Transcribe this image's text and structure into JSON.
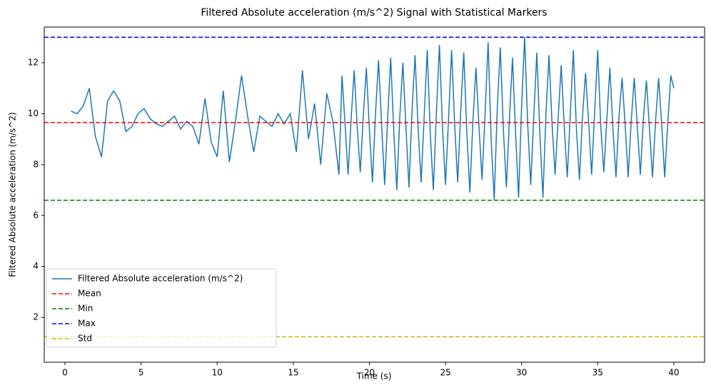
{
  "chart_data": {
    "type": "line",
    "title": "Filtered Absolute acceleration (m/s^2) Signal with Statistical Markers",
    "xlabel": "Time (s)",
    "ylabel": "Filtered Absolute acceleration (m/s^2)",
    "xlim": [
      -1.36,
      42.02
    ],
    "ylim": [
      0.24,
      13.4
    ],
    "xticks": [
      0,
      5,
      10,
      15,
      20,
      25,
      30,
      35,
      40
    ],
    "yticks": [
      2,
      4,
      6,
      8,
      10,
      12
    ],
    "legend": "lower left",
    "series": [
      {
        "name": "Filtered Absolute acceleration (m/s^2)",
        "color": "#1f77b4",
        "x": [
          0.4,
          0.8,
          1.2,
          1.6,
          2.0,
          2.4,
          2.8,
          3.2,
          3.6,
          4.0,
          4.4,
          4.8,
          5.2,
          5.6,
          6.0,
          6.4,
          6.8,
          7.2,
          7.6,
          8.0,
          8.4,
          8.8,
          9.2,
          9.6,
          10.0,
          10.4,
          10.8,
          11.2,
          11.6,
          12.0,
          12.4,
          12.8,
          13.2,
          13.6,
          14.0,
          14.4,
          14.8,
          15.2,
          15.6,
          16.0,
          16.4,
          16.8,
          17.2,
          17.6,
          18.0,
          18.2,
          18.4,
          18.6,
          18.8,
          19.0,
          19.2,
          19.4,
          19.6,
          19.8,
          20.0,
          20.2,
          20.4,
          20.6,
          20.8,
          21.0,
          21.2,
          21.4,
          21.6,
          21.8,
          22.0,
          22.2,
          22.4,
          22.6,
          22.8,
          23.0,
          23.2,
          23.4,
          23.6,
          23.8,
          24.0,
          24.2,
          24.4,
          24.6,
          24.8,
          25.0,
          25.2,
          25.4,
          25.6,
          25.8,
          26.0,
          26.2,
          26.4,
          26.6,
          26.8,
          27.0,
          27.2,
          27.4,
          27.6,
          27.8,
          28.0,
          28.2,
          28.4,
          28.6,
          28.8,
          29.0,
          29.2,
          29.4,
          29.6,
          29.8,
          30.0,
          30.2,
          30.4,
          30.6,
          30.8,
          31.0,
          31.2,
          31.4,
          31.6,
          31.8,
          32.0,
          32.2,
          32.4,
          32.6,
          32.8,
          33.0,
          33.2,
          33.4,
          33.6,
          33.8,
          34.0,
          34.2,
          34.4,
          34.6,
          34.8,
          35.0,
          35.2,
          35.4,
          35.6,
          35.8,
          36.0,
          36.2,
          36.4,
          36.6,
          36.8,
          37.0,
          37.2,
          37.4,
          37.6,
          37.8,
          38.0,
          38.2,
          38.4,
          38.6,
          38.8,
          39.0,
          39.2,
          39.4,
          39.6,
          39.8,
          40.0
        ],
        "values": [
          10.1,
          10.0,
          10.3,
          11.0,
          9.1,
          8.3,
          10.5,
          10.9,
          10.5,
          9.3,
          9.5,
          10.0,
          10.2,
          9.8,
          9.6,
          9.5,
          9.7,
          9.9,
          9.4,
          9.7,
          9.5,
          8.8,
          10.6,
          8.9,
          8.3,
          10.9,
          8.1,
          9.7,
          11.5,
          9.9,
          8.5,
          9.9,
          9.7,
          9.5,
          10.0,
          9.6,
          10.0,
          8.5,
          11.7,
          9.0,
          10.4,
          8.0,
          10.8,
          9.7,
          7.6,
          11.5,
          9.6,
          7.6,
          9.8,
          11.7,
          9.5,
          7.7,
          9.9,
          11.8,
          9.4,
          7.3,
          10.0,
          12.1,
          9.6,
          7.2,
          9.8,
          12.2,
          9.3,
          7.0,
          9.9,
          12.0,
          9.5,
          7.1,
          10.1,
          12.3,
          9.4,
          7.3,
          9.9,
          12.5,
          9.2,
          7.0,
          10.0,
          12.7,
          9.5,
          7.2,
          9.8,
          12.5,
          9.6,
          7.3,
          10.1,
          12.4,
          9.3,
          6.9,
          9.7,
          11.8,
          9.5,
          7.4,
          10.0,
          12.8,
          9.0,
          6.6,
          10.2,
          12.6,
          9.4,
          7.1,
          9.8,
          12.2,
          9.3,
          6.7,
          10.3,
          13.0,
          9.6,
          7.2,
          9.9,
          12.4,
          9.2,
          6.7,
          10.0,
          12.3,
          9.6,
          7.6,
          9.8,
          11.9,
          9.5,
          7.5,
          10.0,
          12.5,
          9.4,
          7.4,
          9.9,
          11.6,
          9.7,
          7.6,
          10.1,
          12.5,
          9.5,
          7.7,
          9.8,
          11.8,
          9.4,
          7.5,
          9.9,
          11.4,
          9.6,
          7.5,
          9.7,
          11.4,
          9.5,
          7.6,
          9.8,
          11.3,
          9.4,
          7.5,
          9.7,
          11.4,
          9.6,
          7.5,
          9.6,
          11.5,
          11.0
        ]
      }
    ],
    "hlines": [
      {
        "name": "Mean",
        "color": "#ff0000",
        "value": 9.65
      },
      {
        "name": "Min",
        "color": "#008000",
        "value": 6.6
      },
      {
        "name": "Max",
        "color": "#0000ff",
        "value": 13.0
      },
      {
        "name": "Std",
        "color": "#bfbf00",
        "value": 1.24
      }
    ]
  }
}
